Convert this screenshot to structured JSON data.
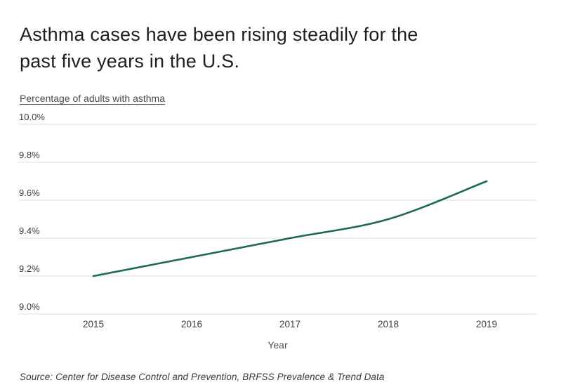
{
  "header": {
    "title": "Asthma cases have been rising steadily for the past five years in the U.S.",
    "title_line1": "Asthma cases have been rising steadily for the",
    "title_line2": "past five years in the U.S.",
    "subtitle": "Percentage of adults with asthma"
  },
  "footer": {
    "source": "Source: Center for Disease Control and Prevention, BRFSS Prevalence & Trend Data"
  },
  "colors": {
    "line": "#1c6a55",
    "grid": "#e0e0e0",
    "title_text": "#1f1f1f",
    "tick_text": "#3c3c3c",
    "background": "#ffffff"
  },
  "chart_data": {
    "type": "line",
    "title": "Asthma cases have been rising steadily for the past five years in the U.S.",
    "subtitle": "Percentage of adults with asthma",
    "categories": [
      "2015",
      "2016",
      "2017",
      "2018",
      "2019"
    ],
    "x": [
      2015,
      2016,
      2017,
      2018,
      2019
    ],
    "series": [
      {
        "name": "Percentage of adults with asthma",
        "values": [
          9.2,
          9.3,
          9.4,
          9.5,
          9.7
        ]
      }
    ],
    "values": [
      9.2,
      9.3,
      9.4,
      9.5,
      9.7
    ],
    "xlabel": "Year",
    "ylabel": "Percentage of adults with asthma",
    "ylim": [
      9.0,
      10.0
    ],
    "y_ticks": [
      10.0,
      9.8,
      9.6,
      9.4,
      9.2,
      9.0
    ],
    "y_tick_labels": [
      "10.0%",
      "9.8%",
      "9.6%",
      "9.4%",
      "9.2%",
      "9.0%"
    ],
    "grid": true,
    "legend": false,
    "smooth": true,
    "line_color": "#1c6a55",
    "grid_color": "#e0e0e0"
  }
}
